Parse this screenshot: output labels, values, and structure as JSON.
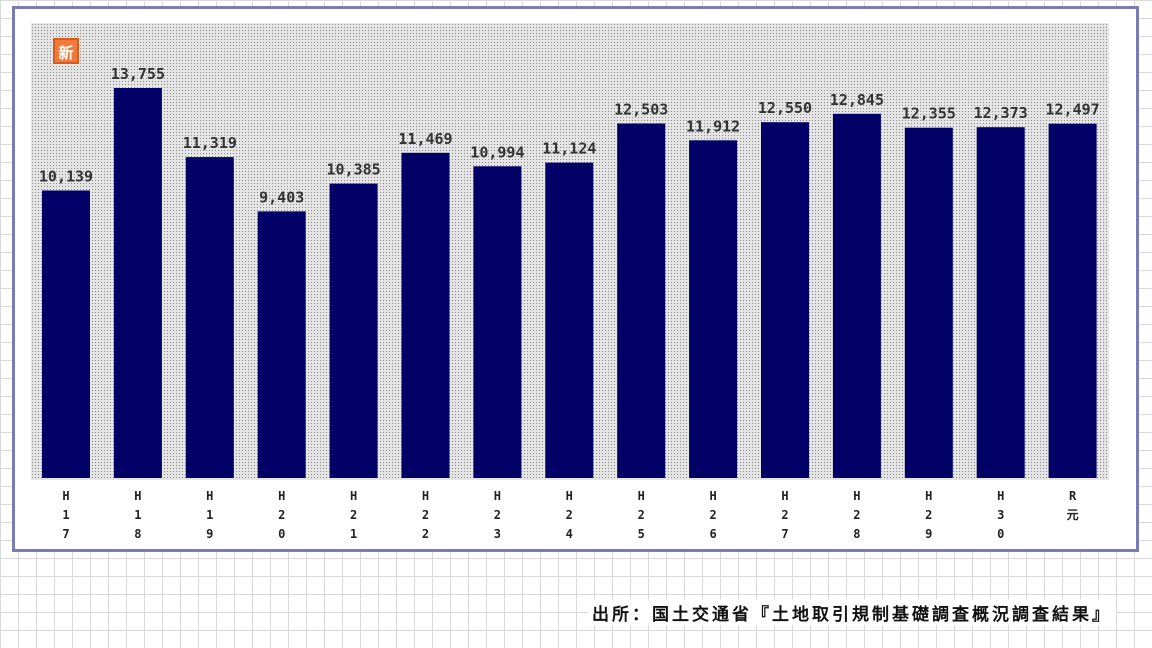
{
  "badge": {
    "text": "新"
  },
  "source": {
    "text": "出所：国土交通省『土地取引規制基礎調査概況調査結果』"
  },
  "colors": {
    "bar": "#000066",
    "frame": "#7b7bb6",
    "badge": "#f07a3c"
  },
  "chart_data": {
    "type": "bar",
    "categories": [
      [
        "H",
        "1",
        "7"
      ],
      [
        "H",
        "1",
        "8"
      ],
      [
        "H",
        "1",
        "9"
      ],
      [
        "H",
        "2",
        "0"
      ],
      [
        "H",
        "2",
        "1"
      ],
      [
        "H",
        "2",
        "2"
      ],
      [
        "H",
        "2",
        "3"
      ],
      [
        "H",
        "2",
        "4"
      ],
      [
        "H",
        "2",
        "5"
      ],
      [
        "H",
        "2",
        "6"
      ],
      [
        "H",
        "2",
        "7"
      ],
      [
        "H",
        "2",
        "8"
      ],
      [
        "H",
        "2",
        "9"
      ],
      [
        "H",
        "3",
        "0"
      ],
      [
        "R",
        "元"
      ]
    ],
    "values": [
      10139,
      13755,
      11319,
      9403,
      10385,
      11469,
      10994,
      11124,
      12503,
      11912,
      12550,
      12845,
      12355,
      12373,
      12497
    ],
    "value_labels": [
      "10,139",
      "13,755",
      "11,319",
      "9,403",
      "10,385",
      "11,469",
      "10,994",
      "11,124",
      "12,503",
      "11,912",
      "12,550",
      "12,845",
      "12,355",
      "12,373",
      "12,497"
    ],
    "ylim": [
      0,
      15000
    ],
    "grid": false,
    "legend": "none"
  }
}
